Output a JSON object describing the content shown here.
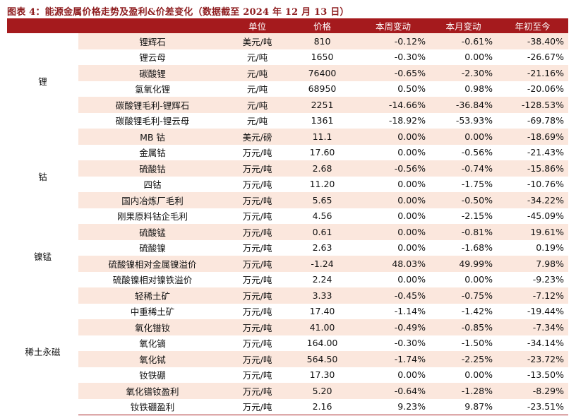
{
  "title": "图表 4：能源金属价格走势及盈利&价差变化（数据截至 2024 年 12 月 13 日）",
  "headers": [
    "单位",
    "价格",
    "本周变动",
    "本月变动",
    "年初至今"
  ],
  "groups": [
    {
      "name": "锂",
      "rows": [
        {
          "name": "锂辉石",
          "unit": "美元/吨",
          "price": "810",
          "week": "-0.12%",
          "month": "-0.61%",
          "ytd": "-38.40%"
        },
        {
          "name": "锂云母",
          "unit": "元/吨",
          "price": "1650",
          "week": "-0.30%",
          "month": "0.00%",
          "ytd": "-26.67%"
        },
        {
          "name": "碳酸锂",
          "unit": "元/吨",
          "price": "76400",
          "week": "-0.65%",
          "month": "-2.30%",
          "ytd": "-21.16%"
        },
        {
          "name": "氢氧化锂",
          "unit": "元/吨",
          "price": "68950",
          "week": "0.50%",
          "month": "0.98%",
          "ytd": "-20.06%"
        },
        {
          "name": "碳酸锂毛利-锂辉石",
          "unit": "元/吨",
          "price": "2251",
          "week": "-14.66%",
          "month": "-36.84%",
          "ytd": "-128.53%"
        },
        {
          "name": "碳酸锂毛利-锂云母",
          "unit": "元/吨",
          "price": "1361",
          "week": "-18.92%",
          "month": "-53.93%",
          "ytd": "-69.78%"
        }
      ]
    },
    {
      "name": "钴",
      "rows": [
        {
          "name": "MB 钴",
          "unit": "美元/磅",
          "price": "11.1",
          "week": "0.00%",
          "month": "0.00%",
          "ytd": "-18.69%"
        },
        {
          "name": "金属钴",
          "unit": "万元/吨",
          "price": "17.60",
          "week": "0.00%",
          "month": "-0.56%",
          "ytd": "-21.43%"
        },
        {
          "name": "硫酸钴",
          "unit": "万元/吨",
          "price": "2.68",
          "week": "-0.56%",
          "month": "-0.74%",
          "ytd": "-15.86%"
        },
        {
          "name": "四钴",
          "unit": "万元/吨",
          "price": "11.20",
          "week": "0.00%",
          "month": "-1.75%",
          "ytd": "-10.76%"
        },
        {
          "name": "国内冶炼厂毛利",
          "unit": "万元/吨",
          "price": "5.65",
          "week": "0.00%",
          "month": "-0.50%",
          "ytd": "-34.22%"
        },
        {
          "name": "刚果原料钴企毛利",
          "unit": "万元/吨",
          "price": "4.56",
          "week": "0.00%",
          "month": "-2.15%",
          "ytd": "-45.09%"
        }
      ]
    },
    {
      "name": "镍锰",
      "rows": [
        {
          "name": "硫酸锰",
          "unit": "万元/吨",
          "price": "0.61",
          "week": "0.00%",
          "month": "-0.81%",
          "ytd": "19.61%"
        },
        {
          "name": "硫酸镍",
          "unit": "万元/吨",
          "price": "2.63",
          "week": "0.00%",
          "month": "-1.68%",
          "ytd": "0.19%"
        },
        {
          "name": "硫酸镍相对金属镍溢价",
          "unit": "万元/吨",
          "price": "-1.24",
          "week": "48.03%",
          "month": "49.99%",
          "ytd": "7.98%"
        },
        {
          "name": "硫酸镍相对镍铁溢价",
          "unit": "万元/吨",
          "price": "2.24",
          "week": "0.00%",
          "month": "0.00%",
          "ytd": "-9.23%"
        }
      ]
    },
    {
      "name": "稀土永磁",
      "rows": [
        {
          "name": "轻稀土矿",
          "unit": "万元/吨",
          "price": "3.33",
          "week": "-0.45%",
          "month": "-0.75%",
          "ytd": "-7.12%"
        },
        {
          "name": "中重稀土矿",
          "unit": "万元/吨",
          "price": "17.40",
          "week": "-1.14%",
          "month": "-1.42%",
          "ytd": "-19.44%"
        },
        {
          "name": "氧化镨钕",
          "unit": "万元/吨",
          "price": "41.00",
          "week": "-0.49%",
          "month": "-0.85%",
          "ytd": "-7.34%"
        },
        {
          "name": "氧化镝",
          "unit": "万元/吨",
          "price": "164.00",
          "week": "-0.30%",
          "month": "-1.50%",
          "ytd": "-34.14%"
        },
        {
          "name": "氧化铽",
          "unit": "万元/吨",
          "price": "564.50",
          "week": "-1.74%",
          "month": "-2.25%",
          "ytd": "-23.72%"
        },
        {
          "name": "钕铁硼",
          "unit": "万元/吨",
          "price": "17.30",
          "week": "0.00%",
          "month": "0.00%",
          "ytd": "-13.50%"
        },
        {
          "name": "氧化镨钕盈利",
          "unit": "万元/吨",
          "price": "5.20",
          "week": "-0.64%",
          "month": "-1.28%",
          "ytd": "-8.29%"
        },
        {
          "name": "钕铁硼盈利",
          "unit": "万元/吨",
          "price": "2.16",
          "week": "9.23%",
          "month": "9.87%",
          "ytd": "-23.51%"
        }
      ]
    }
  ],
  "colors": {
    "header_bg": "#a51a1d",
    "title": "#8e1d1f",
    "row_shade": "#fbe7dd"
  }
}
